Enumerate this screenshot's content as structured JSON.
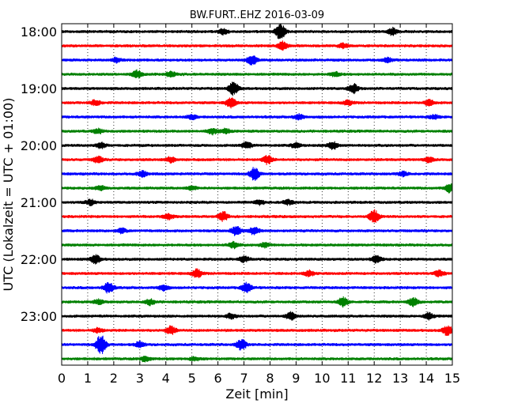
{
  "chart_data": {
    "type": "line",
    "chart_kind": "dayplot-helicorder",
    "title": "BW.FURT..EHZ 2016-03-09",
    "xlabel": "Zeit  [min]",
    "ylabel": "UTC (Lokalzeit = UTC + 01:00)",
    "xlim": [
      0,
      15
    ],
    "x_ticks": [
      "0",
      "1",
      "2",
      "3",
      "4",
      "5",
      "6",
      "7",
      "8",
      "9",
      "10",
      "11",
      "12",
      "13",
      "14",
      "15"
    ],
    "y_tick_labels": [
      "18:00",
      "19:00",
      "20:00",
      "21:00",
      "22:00",
      "23:00"
    ],
    "grid": "vertical dotted lines at each minute",
    "colors": [
      "#000000",
      "#ff0000",
      "#0000ff",
      "#008000"
    ],
    "traces": [
      {
        "start": "18:00",
        "bursts": [
          {
            "t": 8.4,
            "a": 1.8
          },
          {
            "t": 12.7,
            "a": 0.8
          },
          {
            "t": 6.2,
            "a": 0.6
          }
        ]
      },
      {
        "start": "18:15",
        "bursts": [
          {
            "t": 8.5,
            "a": 1.0
          },
          {
            "t": 10.8,
            "a": 0.5
          }
        ]
      },
      {
        "start": "18:30",
        "bursts": [
          {
            "t": 7.3,
            "a": 1.1
          },
          {
            "t": 2.1,
            "a": 0.5
          },
          {
            "t": 12.5,
            "a": 0.5
          }
        ]
      },
      {
        "start": "18:45",
        "bursts": [
          {
            "t": 2.9,
            "a": 0.8
          },
          {
            "t": 4.2,
            "a": 0.6
          },
          {
            "t": 10.5,
            "a": 0.5
          }
        ]
      },
      {
        "start": "19:00",
        "bursts": [
          {
            "t": 6.6,
            "a": 1.4
          },
          {
            "t": 11.2,
            "a": 1.0
          }
        ]
      },
      {
        "start": "19:15",
        "bursts": [
          {
            "t": 6.5,
            "a": 1.1
          },
          {
            "t": 1.3,
            "a": 0.6
          },
          {
            "t": 11.0,
            "a": 0.5
          },
          {
            "t": 14.1,
            "a": 0.6
          }
        ]
      },
      {
        "start": "19:30",
        "bursts": [
          {
            "t": 5.0,
            "a": 0.5
          },
          {
            "t": 9.1,
            "a": 0.6
          },
          {
            "t": 14.3,
            "a": 0.4
          }
        ]
      },
      {
        "start": "19:45",
        "bursts": [
          {
            "t": 1.4,
            "a": 0.5
          },
          {
            "t": 5.8,
            "a": 0.6
          },
          {
            "t": 6.3,
            "a": 0.5
          }
        ]
      },
      {
        "start": "20:00",
        "bursts": [
          {
            "t": 1.5,
            "a": 0.6
          },
          {
            "t": 7.1,
            "a": 0.7
          },
          {
            "t": 10.4,
            "a": 0.9
          },
          {
            "t": 9.0,
            "a": 0.5
          }
        ]
      },
      {
        "start": "20:15",
        "bursts": [
          {
            "t": 1.4,
            "a": 0.7
          },
          {
            "t": 7.9,
            "a": 0.9
          },
          {
            "t": 4.2,
            "a": 0.6
          },
          {
            "t": 14.1,
            "a": 0.5
          }
        ]
      },
      {
        "start": "20:30",
        "bursts": [
          {
            "t": 7.4,
            "a": 1.4
          },
          {
            "t": 3.1,
            "a": 0.6
          },
          {
            "t": 13.1,
            "a": 0.5
          }
        ]
      },
      {
        "start": "20:45",
        "bursts": [
          {
            "t": 14.9,
            "a": 0.9
          },
          {
            "t": 1.5,
            "a": 0.5
          },
          {
            "t": 5.0,
            "a": 0.4
          }
        ]
      },
      {
        "start": "21:00",
        "bursts": [
          {
            "t": 1.1,
            "a": 0.6
          },
          {
            "t": 7.6,
            "a": 0.5
          },
          {
            "t": 8.7,
            "a": 0.5
          }
        ]
      },
      {
        "start": "21:15",
        "bursts": [
          {
            "t": 12.0,
            "a": 1.4
          },
          {
            "t": 6.2,
            "a": 1.0
          },
          {
            "t": 4.1,
            "a": 0.6
          }
        ]
      },
      {
        "start": "21:30",
        "bursts": [
          {
            "t": 6.7,
            "a": 1.0
          },
          {
            "t": 7.4,
            "a": 0.9
          },
          {
            "t": 2.3,
            "a": 0.5
          }
        ]
      },
      {
        "start": "21:45",
        "bursts": [
          {
            "t": 6.6,
            "a": 0.7
          },
          {
            "t": 7.8,
            "a": 0.5
          }
        ]
      },
      {
        "start": "22:00",
        "bursts": [
          {
            "t": 1.3,
            "a": 0.9
          },
          {
            "t": 12.1,
            "a": 0.8
          },
          {
            "t": 7.0,
            "a": 0.6
          }
        ]
      },
      {
        "start": "22:15",
        "bursts": [
          {
            "t": 5.2,
            "a": 0.9
          },
          {
            "t": 14.5,
            "a": 0.7
          },
          {
            "t": 9.5,
            "a": 0.6
          }
        ]
      },
      {
        "start": "22:30",
        "bursts": [
          {
            "t": 1.8,
            "a": 1.2
          },
          {
            "t": 7.1,
            "a": 1.1
          },
          {
            "t": 3.9,
            "a": 0.6
          }
        ]
      },
      {
        "start": "22:45",
        "bursts": [
          {
            "t": 10.8,
            "a": 1.0
          },
          {
            "t": 13.5,
            "a": 0.9
          },
          {
            "t": 3.4,
            "a": 0.6
          },
          {
            "t": 1.4,
            "a": 0.5
          }
        ]
      },
      {
        "start": "23:00",
        "bursts": [
          {
            "t": 8.8,
            "a": 0.8
          },
          {
            "t": 14.1,
            "a": 0.7
          },
          {
            "t": 6.5,
            "a": 0.5
          }
        ]
      },
      {
        "start": "23:15",
        "bursts": [
          {
            "t": 4.2,
            "a": 0.9
          },
          {
            "t": 14.8,
            "a": 1.0
          },
          {
            "t": 1.4,
            "a": 0.5
          }
        ]
      },
      {
        "start": "23:30",
        "bursts": [
          {
            "t": 1.5,
            "a": 2.2
          },
          {
            "t": 6.9,
            "a": 1.2
          },
          {
            "t": 3.0,
            "a": 0.6
          }
        ]
      },
      {
        "start": "23:45",
        "bursts": [
          {
            "t": 3.2,
            "a": 0.6
          },
          {
            "t": 5.1,
            "a": 0.4
          }
        ]
      }
    ]
  }
}
